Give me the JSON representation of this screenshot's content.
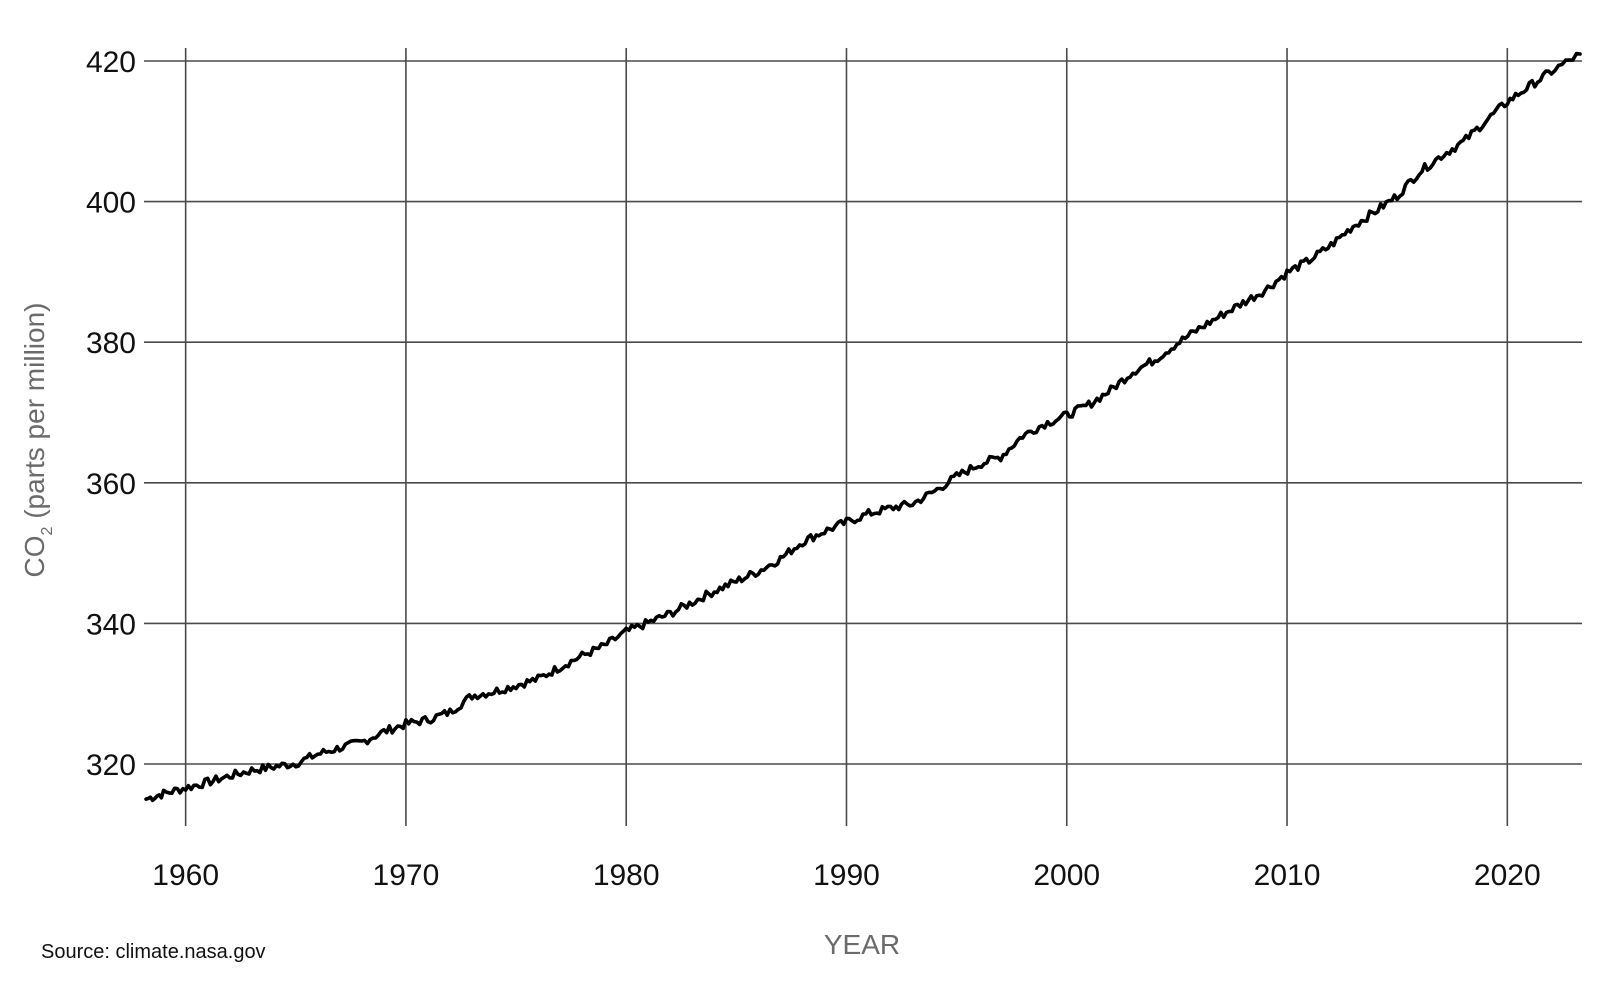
{
  "chart_data": {
    "type": "line",
    "title": "",
    "xlabel": "YEAR",
    "ylabel": {
      "prefix": "CO",
      "subscript": "2",
      "suffix": " (parts per million)"
    },
    "xlim": [
      1958.2,
      2023.3
    ],
    "ylim": [
      309,
      421.5
    ],
    "x_ticks": [
      1960,
      1970,
      1980,
      1990,
      2000,
      2010,
      2020
    ],
    "y_ticks": [
      320,
      340,
      360,
      380,
      400,
      420
    ],
    "grid": true,
    "legend": "none",
    "line_color": "#000000",
    "series": [
      {
        "x": [
          1958.2,
          1959,
          1960,
          1961,
          1962,
          1963,
          1964,
          1965,
          1966,
          1967,
          1968,
          1969,
          1970,
          1971,
          1972,
          1973,
          1974,
          1975,
          1976,
          1977,
          1978,
          1979,
          1980,
          1981,
          1982,
          1983,
          1984,
          1985,
          1986,
          1987,
          1988,
          1989,
          1990,
          1991,
          1992,
          1993,
          1994,
          1995,
          1996,
          1997,
          1998,
          1999,
          2000,
          2001,
          2002,
          2003,
          2004,
          2005,
          2006,
          2007,
          2008,
          2009,
          2010,
          2011,
          2012,
          2013,
          2014,
          2015,
          2016,
          2017,
          2018,
          2019,
          2020,
          2021,
          2022,
          2023.3
        ],
        "y": [
          315.0,
          315.8,
          316.6,
          317.4,
          318.3,
          319.1,
          319.6,
          320.1,
          321.4,
          322.3,
          323.1,
          324.6,
          325.7,
          326.3,
          327.4,
          329.7,
          330.3,
          331.2,
          332.1,
          333.8,
          335.4,
          336.8,
          338.8,
          340.1,
          341.4,
          343.0,
          344.6,
          346.0,
          347.4,
          349.2,
          351.6,
          353.1,
          354.4,
          355.6,
          356.4,
          357.0,
          358.8,
          360.9,
          362.6,
          363.7,
          366.7,
          368.4,
          369.6,
          371.1,
          373.2,
          375.8,
          377.5,
          379.8,
          381.9,
          383.8,
          385.6,
          387.4,
          389.9,
          391.6,
          393.8,
          396.5,
          398.6,
          400.8,
          404.2,
          406.5,
          408.5,
          411.4,
          414.2,
          416.4,
          418.5,
          421.0
        ]
      }
    ]
  },
  "source_text": "Source: climate.nasa.gov"
}
